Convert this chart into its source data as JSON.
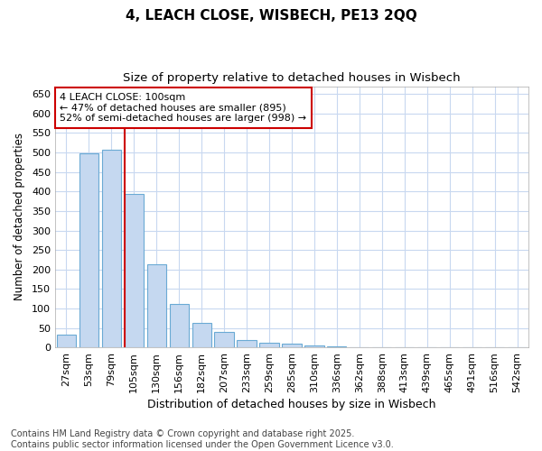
{
  "title": "4, LEACH CLOSE, WISBECH, PE13 2QQ",
  "subtitle": "Size of property relative to detached houses in Wisbech",
  "xlabel": "Distribution of detached houses by size in Wisbech",
  "ylabel": "Number of detached properties",
  "categories": [
    "27sqm",
    "53sqm",
    "79sqm",
    "105sqm",
    "130sqm",
    "156sqm",
    "182sqm",
    "207sqm",
    "233sqm",
    "259sqm",
    "285sqm",
    "310sqm",
    "336sqm",
    "362sqm",
    "388sqm",
    "413sqm",
    "439sqm",
    "465sqm",
    "491sqm",
    "516sqm",
    "542sqm"
  ],
  "values": [
    32,
    497,
    507,
    393,
    214,
    112,
    62,
    40,
    20,
    13,
    9,
    4,
    2,
    1,
    1,
    0,
    0,
    0,
    0,
    0,
    0
  ],
  "bar_color": "#c5d8f0",
  "bar_edge_color": "#6aaad4",
  "vline_color": "#cc0000",
  "annotation_text": "4 LEACH CLOSE: 100sqm\n← 47% of detached houses are smaller (895)\n52% of semi-detached houses are larger (998) →",
  "annotation_box_color": "#cc0000",
  "annotation_bg_color": "#ffffff",
  "ylim": [
    0,
    670
  ],
  "yticks": [
    0,
    50,
    100,
    150,
    200,
    250,
    300,
    350,
    400,
    450,
    500,
    550,
    600,
    650
  ],
  "background_color": "#ffffff",
  "grid_color": "#c8d8f0",
  "footer_text": "Contains HM Land Registry data © Crown copyright and database right 2025.\nContains public sector information licensed under the Open Government Licence v3.0.",
  "title_fontsize": 11,
  "subtitle_fontsize": 9.5,
  "xlabel_fontsize": 9,
  "ylabel_fontsize": 8.5,
  "tick_fontsize": 8,
  "annotation_fontsize": 8,
  "footer_fontsize": 7,
  "vline_pos": 2.57
}
